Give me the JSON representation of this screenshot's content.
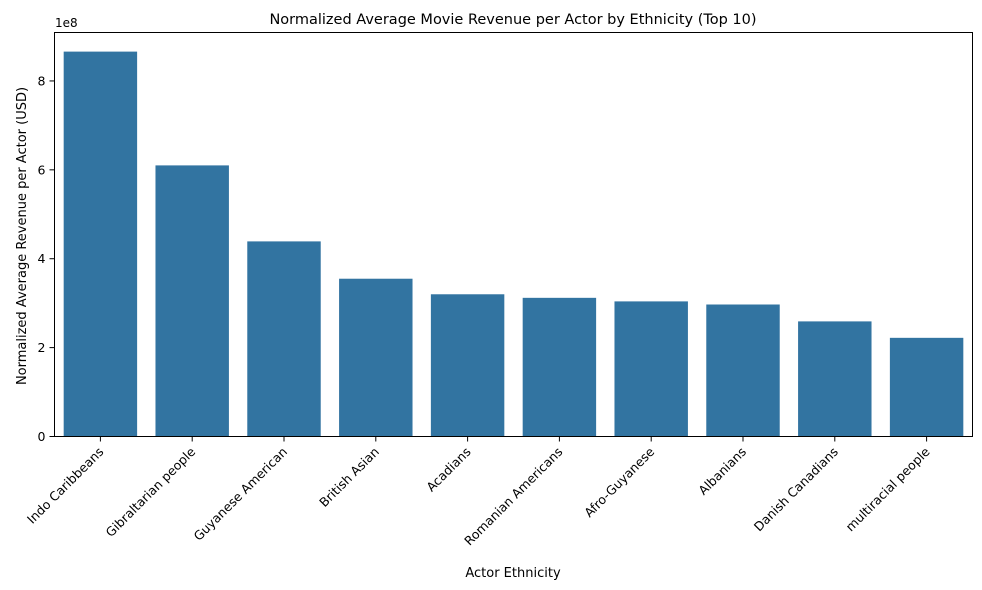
{
  "chart_data": {
    "type": "bar",
    "title": "Normalized Average Movie Revenue per Actor by Ethnicity (Top 10)",
    "xlabel": "Actor Ethnicity",
    "ylabel": "Normalized Average Revenue per Actor (USD)",
    "y_offset_label": "1e8",
    "categories": [
      "Indo Caribbeans",
      "Gibraltarian people",
      "Guyanese American",
      "British Asian",
      "Acadians",
      "Romanian Americans",
      "Afro-Guyanese",
      "Albanians",
      "Danish Canadians",
      "multiracial people"
    ],
    "values": [
      866000000,
      610000000,
      439000000,
      355000000,
      320000000,
      312000000,
      304000000,
      297000000,
      259000000,
      222000000
    ],
    "y_ticks": [
      0,
      200000000,
      400000000,
      600000000,
      800000000
    ],
    "y_tick_labels": [
      "0",
      "2",
      "4",
      "6",
      "8"
    ],
    "ylim": [
      0,
      909000000
    ],
    "grid": false,
    "bar_color": "#3274a1"
  }
}
